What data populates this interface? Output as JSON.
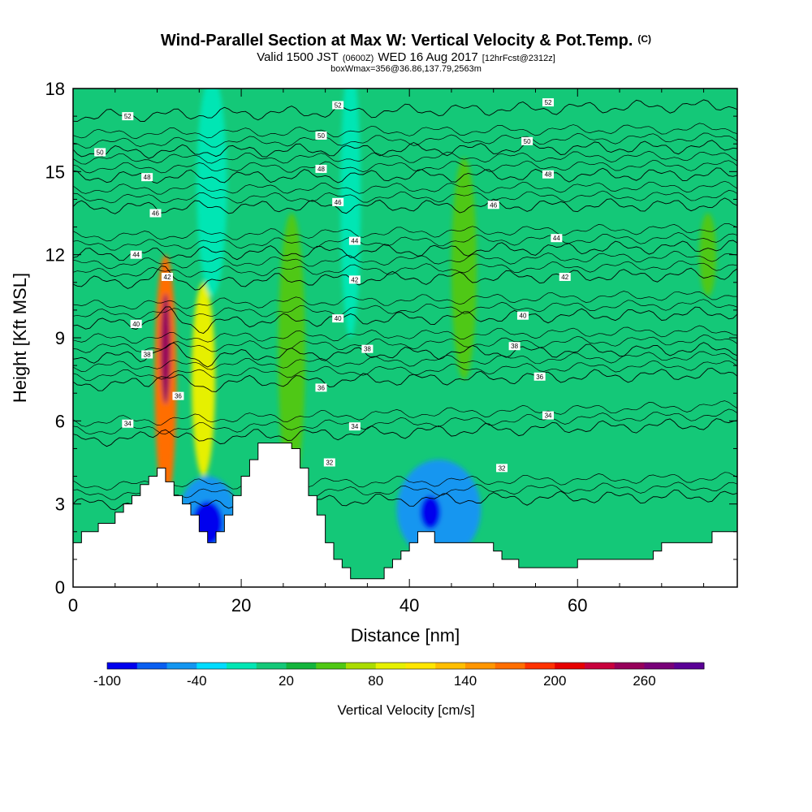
{
  "title": {
    "main": "Wind-Parallel Section at Max W: Vertical Velocity & Pot.Temp.",
    "main_suffix": "(C)",
    "line2_a": "Valid 1500 JST",
    "line2_b": "(0600Z)",
    "line2_c": "WED 16 Aug 2017",
    "line2_d": "[12hrFcst@2312z]",
    "line3": "boxWmax=356@36.86,137.79,2563m"
  },
  "chart_data": {
    "type": "heatmap",
    "xlabel": "Distance [nm]",
    "ylabel": "Height [Kft MSL]",
    "xlim": [
      0,
      79
    ],
    "ylim": [
      0,
      18
    ],
    "x_ticks": [
      0,
      20,
      40,
      60
    ],
    "y_ticks": [
      0,
      3,
      6,
      9,
      12,
      15,
      18
    ],
    "colorbar": {
      "label": "Vertical Velocity [cm/s]",
      "boundaries": [
        -100,
        -80,
        -60,
        -40,
        -20,
        0,
        20,
        40,
        60,
        80,
        100,
        120,
        140,
        160,
        180,
        200,
        220,
        240,
        260,
        280,
        300
      ],
      "tick_labels": [
        "-100",
        "-40",
        "20",
        "80",
        "140",
        "200",
        "260"
      ],
      "tick_values": [
        -100,
        -40,
        20,
        80,
        140,
        200,
        260
      ],
      "colors": [
        "#0000ee",
        "#0a5ff0",
        "#1496f0",
        "#00dcff",
        "#00e6b4",
        "#14c878",
        "#14b43c",
        "#50c814",
        "#aadc00",
        "#e6f000",
        "#ffe600",
        "#ffbe00",
        "#ff9600",
        "#ff6e00",
        "#ff3200",
        "#e60000",
        "#c8003c",
        "#96005a",
        "#780078",
        "#5a0096"
      ]
    },
    "background_class_value": 10,
    "terrain_kft": [
      [
        0,
        1.6
      ],
      [
        1,
        1.6
      ],
      [
        1,
        2.0
      ],
      [
        3,
        2.0
      ],
      [
        3,
        2.3
      ],
      [
        5,
        2.3
      ],
      [
        5,
        2.7
      ],
      [
        6,
        2.7
      ],
      [
        6,
        3.0
      ],
      [
        7,
        3.0
      ],
      [
        7,
        3.3
      ],
      [
        8,
        3.3
      ],
      [
        8,
        3.7
      ],
      [
        9,
        3.7
      ],
      [
        9,
        4.0
      ],
      [
        10,
        4.0
      ],
      [
        10,
        4.3
      ],
      [
        11,
        4.3
      ],
      [
        11,
        3.8
      ],
      [
        12,
        3.8
      ],
      [
        12,
        3.3
      ],
      [
        13,
        3.3
      ],
      [
        13,
        3.0
      ],
      [
        14,
        3.0
      ],
      [
        14,
        2.6
      ],
      [
        15,
        2.6
      ],
      [
        15,
        2.0
      ],
      [
        16,
        2.0
      ],
      [
        16,
        1.6
      ],
      [
        17,
        1.6
      ],
      [
        17,
        2.0
      ],
      [
        18,
        2.0
      ],
      [
        18,
        2.6
      ],
      [
        19,
        2.6
      ],
      [
        19,
        3.3
      ],
      [
        20,
        3.3
      ],
      [
        20,
        4.0
      ],
      [
        21,
        4.0
      ],
      [
        21,
        4.6
      ],
      [
        22,
        4.6
      ],
      [
        22,
        5.2
      ],
      [
        26,
        5.2
      ],
      [
        26,
        5.0
      ],
      [
        27,
        5.0
      ],
      [
        27,
        4.3
      ],
      [
        28,
        4.3
      ],
      [
        28,
        3.3
      ],
      [
        29,
        3.3
      ],
      [
        29,
        2.6
      ],
      [
        30,
        2.6
      ],
      [
        30,
        1.6
      ],
      [
        31,
        1.6
      ],
      [
        31,
        1.0
      ],
      [
        32,
        1.0
      ],
      [
        32,
        0.7
      ],
      [
        33,
        0.7
      ],
      [
        33,
        0.3
      ],
      [
        37,
        0.3
      ],
      [
        37,
        0.7
      ],
      [
        38,
        0.7
      ],
      [
        38,
        1.0
      ],
      [
        39,
        1.0
      ],
      [
        39,
        1.3
      ],
      [
        40,
        1.3
      ],
      [
        40,
        1.6
      ],
      [
        41,
        1.6
      ],
      [
        41,
        2.0
      ],
      [
        43,
        2.0
      ],
      [
        43,
        1.6
      ],
      [
        50,
        1.6
      ],
      [
        50,
        1.3
      ],
      [
        51,
        1.3
      ],
      [
        51,
        1.0
      ],
      [
        53,
        1.0
      ],
      [
        53,
        0.7
      ],
      [
        60,
        0.7
      ],
      [
        60,
        1.0
      ],
      [
        69,
        1.0
      ],
      [
        69,
        1.3
      ],
      [
        70,
        1.3
      ],
      [
        70,
        1.6
      ],
      [
        76,
        1.6
      ],
      [
        76,
        2.0
      ],
      [
        79,
        2.0
      ]
    ],
    "blobs": [
      {
        "x": 11,
        "y": 7.5,
        "rx": 1.3,
        "ry": 4.5,
        "value": 160
      },
      {
        "x": 11,
        "y": 8.6,
        "rx": 0.6,
        "ry": 2.0,
        "value": 240
      },
      {
        "x": 15.5,
        "y": 7.5,
        "rx": 1.4,
        "ry": 3.5,
        "value": 90
      },
      {
        "x": 26,
        "y": 8.5,
        "rx": 1.6,
        "ry": 5.0,
        "value": 40
      },
      {
        "x": 46.5,
        "y": 11.5,
        "rx": 1.5,
        "ry": 4.0,
        "value": 40
      },
      {
        "x": 75.5,
        "y": 12.0,
        "rx": 1.0,
        "ry": 1.5,
        "value": 40
      },
      {
        "x": 16,
        "y": 2.5,
        "rx": 3.5,
        "ry": 1.5,
        "value": -50
      },
      {
        "x": 16,
        "y": 2.3,
        "rx": 1.8,
        "ry": 0.8,
        "value": -90
      },
      {
        "x": 43.5,
        "y": 2.8,
        "rx": 5.0,
        "ry": 1.8,
        "value": -50
      },
      {
        "x": 42.5,
        "y": 2.7,
        "rx": 1.2,
        "ry": 0.6,
        "value": -90
      },
      {
        "x": 16.5,
        "y": 14.5,
        "rx": 1.8,
        "ry": 4.0,
        "value": -20
      },
      {
        "x": 33,
        "y": 14,
        "rx": 1.2,
        "ry": 5.0,
        "value": -20
      }
    ],
    "isentropes": [
      {
        "value": 32,
        "y0": 3.0,
        "y1": 3.3
      },
      {
        "value": 34,
        "y0": 5.3,
        "y1": 5.9
      },
      {
        "value": 36,
        "y0": 7.3,
        "y1": 7.7
      },
      {
        "value": 38,
        "y0": 8.3,
        "y1": 8.6
      },
      {
        "value": 40,
        "y0": 9.5,
        "y1": 9.9
      },
      {
        "value": 42,
        "y0": 11.0,
        "y1": 11.3
      },
      {
        "value": 44,
        "y0": 12.0,
        "y1": 12.3
      },
      {
        "value": 46,
        "y0": 13.7,
        "y1": 13.8
      },
      {
        "value": 48,
        "y0": 14.8,
        "y1": 14.9
      },
      {
        "value": 50,
        "y0": 15.7,
        "y1": 15.9
      },
      {
        "value": 52,
        "y0": 17.0,
        "y1": 17.4
      }
    ],
    "isentrope_labels": [
      {
        "text": "52",
        "x": 6.5,
        "y": 17.0
      },
      {
        "text": "52",
        "x": 31.5,
        "y": 17.4
      },
      {
        "text": "52",
        "x": 56.5,
        "y": 17.5
      },
      {
        "text": "50",
        "x": 3.2,
        "y": 15.7
      },
      {
        "text": "50",
        "x": 29.5,
        "y": 16.3
      },
      {
        "text": "50",
        "x": 54,
        "y": 16.1
      },
      {
        "text": "48",
        "x": 8.8,
        "y": 14.8
      },
      {
        "text": "48",
        "x": 29.5,
        "y": 15.1
      },
      {
        "text": "48",
        "x": 56.5,
        "y": 14.9
      },
      {
        "text": "46",
        "x": 9.8,
        "y": 13.5
      },
      {
        "text": "46",
        "x": 31.5,
        "y": 13.9
      },
      {
        "text": "46",
        "x": 50,
        "y": 13.8
      },
      {
        "text": "44",
        "x": 7.5,
        "y": 12.0
      },
      {
        "text": "44",
        "x": 33.5,
        "y": 12.5
      },
      {
        "text": "44",
        "x": 57.5,
        "y": 12.6
      },
      {
        "text": "42",
        "x": 11.2,
        "y": 11.2
      },
      {
        "text": "42",
        "x": 33.5,
        "y": 11.1
      },
      {
        "text": "42",
        "x": 58.5,
        "y": 11.2
      },
      {
        "text": "40",
        "x": 7.5,
        "y": 9.5
      },
      {
        "text": "40",
        "x": 31.5,
        "y": 9.7
      },
      {
        "text": "40",
        "x": 53.5,
        "y": 9.8
      },
      {
        "text": "38",
        "x": 8.8,
        "y": 8.4
      },
      {
        "text": "38",
        "x": 35,
        "y": 8.6
      },
      {
        "text": "38",
        "x": 52.5,
        "y": 8.7
      },
      {
        "text": "36",
        "x": 12.5,
        "y": 6.9
      },
      {
        "text": "36",
        "x": 29.5,
        "y": 7.2
      },
      {
        "text": "36",
        "x": 55.5,
        "y": 7.6
      },
      {
        "text": "34",
        "x": 6.5,
        "y": 5.9
      },
      {
        "text": "34",
        "x": 33.5,
        "y": 5.8
      },
      {
        "text": "34",
        "x": 56.5,
        "y": 6.2
      },
      {
        "text": "32",
        "x": 30.5,
        "y": 4.5
      },
      {
        "text": "32",
        "x": 51,
        "y": 4.3
      }
    ]
  }
}
